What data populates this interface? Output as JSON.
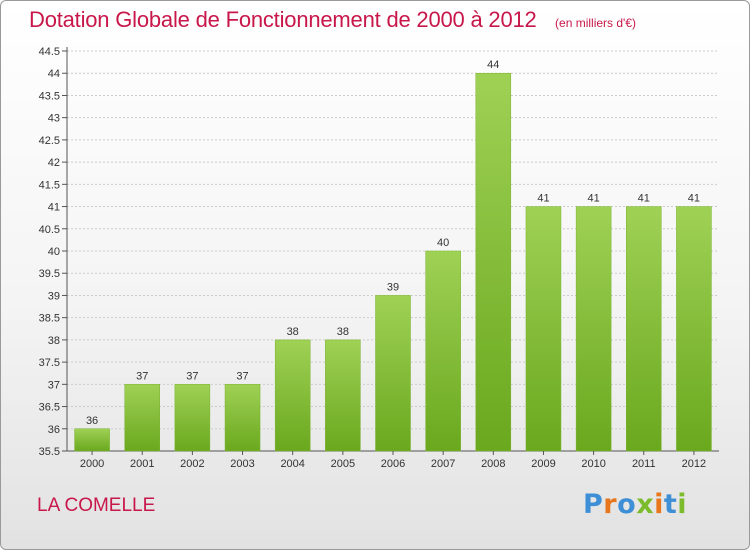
{
  "title": "Dotation Globale de Fonctionnement de 2000 à 2012",
  "unit": "(en milliers d'€)",
  "place": "LA COMELLE",
  "logo": {
    "text": "Proxiti",
    "letters": [
      "P",
      "r",
      "o",
      "x",
      "i",
      "t",
      "i"
    ],
    "colors": [
      "#3f8fd6",
      "#e8761c",
      "#3f8fd6",
      "#7cbc2c",
      "#e8761c",
      "#3f8fd6",
      "#7cbc2c"
    ]
  },
  "colors": {
    "bar_top": "#9fd155",
    "bar_bottom": "#6aa81e",
    "grid": "#cccccc",
    "title": "#c8174a"
  },
  "chart_data": {
    "type": "bar",
    "categories": [
      "2000",
      "2001",
      "2002",
      "2003",
      "2004",
      "2005",
      "2006",
      "2007",
      "2008",
      "2009",
      "2010",
      "2011",
      "2012"
    ],
    "values": [
      36,
      37,
      37,
      37,
      38,
      38,
      39,
      40,
      44,
      41,
      41,
      41,
      41
    ],
    "value_labels": [
      "36",
      "37",
      "37",
      "37",
      "38",
      "38",
      "39",
      "40",
      "44",
      "41",
      "41",
      "41",
      "41"
    ],
    "ylim": [
      35.5,
      44.5
    ],
    "yticks": [
      "35.5",
      "36",
      "36.5",
      "37",
      "37.5",
      "38",
      "38.5",
      "39",
      "39.5",
      "40",
      "40.5",
      "41",
      "41.5",
      "42",
      "42.5",
      "43",
      "43.5",
      "44",
      "44.5"
    ],
    "grid": "horizontal",
    "xlabel": "",
    "ylabel": ""
  }
}
